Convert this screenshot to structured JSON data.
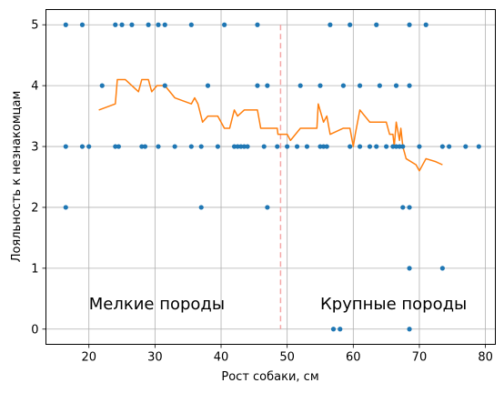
{
  "chart_data": {
    "type": "scatter",
    "xlabel": "Рост собаки, см",
    "ylabel": "Лояльность к незнакомцам",
    "xlim": [
      13.5,
      81.5
    ],
    "ylim": [
      -0.25,
      5.25
    ],
    "xticks": [
      20,
      30,
      40,
      50,
      60,
      70,
      80
    ],
    "yticks": [
      0,
      1,
      2,
      3,
      4,
      5
    ],
    "grid": true,
    "colors": {
      "points": "#1f77b4",
      "line": "#ff7f0e",
      "threshold": "#f4a6a6"
    },
    "threshold_x": 49,
    "annotations": [
      {
        "text": "Мелкие породы",
        "x": 20,
        "y": 0.4
      },
      {
        "text": "Крупные породы",
        "x": 55,
        "y": 0.4
      }
    ],
    "series": [
      {
        "kind": "scatter",
        "x": [
          16.5,
          19,
          24,
          25,
          26.5,
          29,
          30.5,
          31.5,
          35.5,
          40.5,
          45.5,
          56.5,
          59.5,
          63.5,
          68.5,
          71,
          22,
          31.5,
          38,
          45.5,
          47,
          52,
          55,
          58.5,
          61,
          64,
          66.5,
          68.5,
          16.5,
          19,
          20,
          24,
          24.5,
          28,
          28.5,
          30.5,
          33,
          35.5,
          37,
          39.5,
          42,
          42.5,
          43,
          43.5,
          44,
          46.5,
          48.5,
          50,
          51.5,
          53,
          55,
          55.5,
          56,
          59.5,
          61,
          62.5,
          63.5,
          65,
          66,
          66.5,
          67,
          67.5,
          70,
          73.5,
          74.5,
          77,
          79,
          16.5,
          37,
          47,
          67.5,
          68.5,
          68.5,
          73.5,
          57,
          58,
          68.5
        ],
        "y": [
          5,
          5,
          5,
          5,
          5,
          5,
          5,
          5,
          5,
          5,
          5,
          5,
          5,
          5,
          5,
          5,
          4,
          4,
          4,
          4,
          4,
          4,
          4,
          4,
          4,
          4,
          4,
          4,
          3,
          3,
          3,
          3,
          3,
          3,
          3,
          3,
          3,
          3,
          3,
          3,
          3,
          3,
          3,
          3,
          3,
          3,
          3,
          3,
          3,
          3,
          3,
          3,
          3,
          3,
          3,
          3,
          3,
          3,
          3,
          3,
          3,
          3,
          3,
          3,
          3,
          3,
          3,
          2,
          2,
          2,
          2,
          2,
          1,
          1,
          0,
          0,
          0
        ]
      },
      {
        "kind": "line",
        "x": [
          21.5,
          24,
          24.3,
          25.5,
          27.5,
          28,
          29,
          29.5,
          30.3,
          31.5,
          33,
          35.5,
          36,
          36.5,
          37.2,
          38,
          39.5,
          40.5,
          41.3,
          42,
          42.5,
          43.5,
          45.5,
          46,
          48.5,
          48.6,
          49,
          50,
          50.5,
          52,
          54.5,
          54.7,
          55.5,
          56,
          56.5,
          58.5,
          59.5,
          60,
          60.3,
          61,
          62.5,
          63,
          65,
          65.5,
          66,
          66.2,
          66.5,
          67,
          67.2,
          67.5,
          68,
          69.5,
          70,
          71,
          72.5,
          73.5
        ],
        "y": [
          3.6,
          3.7,
          4.1,
          4.1,
          3.9,
          4.1,
          4.1,
          3.9,
          4.0,
          4.0,
          3.8,
          3.7,
          3.8,
          3.7,
          3.4,
          3.5,
          3.5,
          3.3,
          3.3,
          3.6,
          3.5,
          3.6,
          3.6,
          3.3,
          3.3,
          3.2,
          3.2,
          3.2,
          3.1,
          3.3,
          3.3,
          3.7,
          3.4,
          3.5,
          3.2,
          3.3,
          3.3,
          3.0,
          3.2,
          3.6,
          3.4,
          3.4,
          3.4,
          3.2,
          3.2,
          3.0,
          3.4,
          3.1,
          3.3,
          3.0,
          2.8,
          2.7,
          2.6,
          2.8,
          2.75,
          2.7
        ]
      }
    ]
  }
}
